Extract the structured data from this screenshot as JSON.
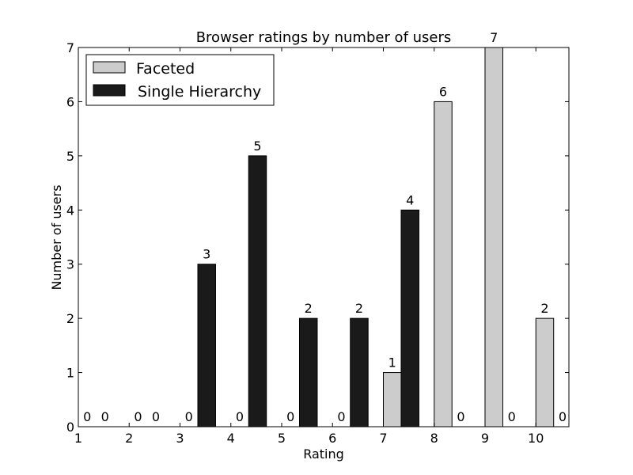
{
  "chart_data": {
    "type": "bar",
    "title": "Browser ratings by number of users",
    "xlabel": "Rating",
    "ylabel": "Number of users",
    "categories": [
      "1",
      "2",
      "3",
      "4",
      "5",
      "6",
      "7",
      "8",
      "9",
      "10"
    ],
    "ylim": [
      0,
      7
    ],
    "yticks": [
      "0",
      "1",
      "2",
      "3",
      "4",
      "5",
      "6",
      "7"
    ],
    "series": [
      {
        "name": "Faceted",
        "color": "#cccccc",
        "values": [
          0,
          0,
          0,
          0,
          0,
          0,
          1,
          6,
          7,
          2
        ]
      },
      {
        "name": "Single Hierarchy",
        "color": "#1a1a1a",
        "values": [
          0,
          0,
          3,
          5,
          2,
          2,
          4,
          0,
          0,
          0
        ]
      }
    ],
    "legend": "top-left",
    "grid": false,
    "data_labels": true
  }
}
